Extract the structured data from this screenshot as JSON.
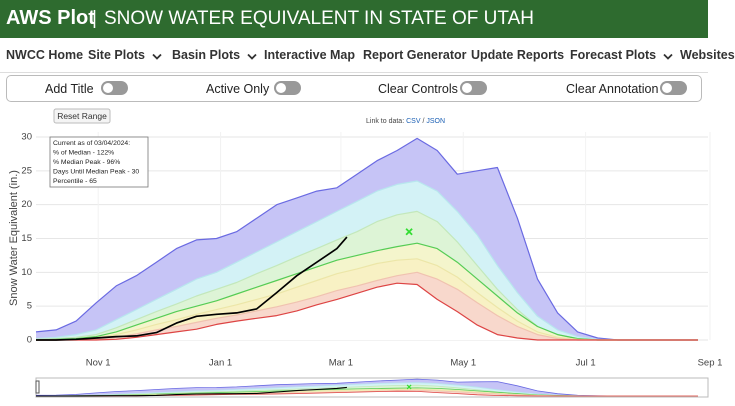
{
  "header": {
    "title": "AWS Plot",
    "separator": "|",
    "subtitle": "SNOW WATER EQUIVALENT IN STATE OF UTAH"
  },
  "nav": [
    {
      "label": "NWCC Home",
      "dropdown": false
    },
    {
      "label": "Site Plots",
      "dropdown": true
    },
    {
      "label": "Basin Plots",
      "dropdown": true
    },
    {
      "label": "Interactive Map",
      "dropdown": false
    },
    {
      "label": "Report Generator",
      "dropdown": false
    },
    {
      "label": "Update Reports",
      "dropdown": false
    },
    {
      "label": "Forecast Plots",
      "dropdown": true
    },
    {
      "label": "Websites",
      "dropdown": false
    }
  ],
  "toggles": [
    "Add Title",
    "Active Only",
    "Clear Controls",
    "Clear Annotation"
  ],
  "controls": {
    "reset": "Reset Range",
    "link_prefix": "Link to data:",
    "links": [
      "CSV",
      "JSON"
    ],
    "link_separator": "/"
  },
  "chart_data": {
    "type": "area",
    "ylabel": "Snow Water Equivalent (in.)",
    "xlim": [
      0,
      335
    ],
    "ylim": [
      0,
      30
    ],
    "xticks": [
      {
        "value": 31,
        "label": "Nov 1"
      },
      {
        "value": 92,
        "label": "Jan 1"
      },
      {
        "value": 152,
        "label": "Mar 1"
      },
      {
        "value": 213,
        "label": "May 1"
      },
      {
        "value": 274,
        "label": "Jul 1"
      },
      {
        "value": 336,
        "label": "Sep 1"
      }
    ],
    "yticks": [
      0,
      5,
      10,
      15,
      20,
      25,
      30
    ],
    "grid": true,
    "x": [
      0,
      10,
      20,
      30,
      40,
      50,
      60,
      70,
      80,
      90,
      100,
      110,
      120,
      130,
      140,
      150,
      160,
      170,
      180,
      190,
      200,
      210,
      220,
      230,
      240,
      250,
      260,
      270,
      280,
      290,
      300,
      310,
      320,
      330
    ],
    "series": [
      {
        "fill": "#c6c4f6",
        "color": "#6a6ae2",
        "values": [
          1.2,
          1.5,
          2.8,
          5.5,
          8,
          9.5,
          11.5,
          13.5,
          14.8,
          15,
          16,
          18,
          20,
          21,
          22,
          22.5,
          24.5,
          26.5,
          28,
          29.8,
          28,
          24.5,
          25,
          25.5,
          18,
          9,
          4,
          1.2,
          0.3,
          0,
          0,
          0,
          0,
          0
        ]
      },
      {
        "fill": "#d3f2f6",
        "color": "#b8e6ee",
        "values": [
          0.2,
          0.4,
          0.8,
          1.5,
          3,
          4.5,
          6,
          7.5,
          9,
          10,
          11.5,
          13,
          14.5,
          16,
          17.5,
          19,
          20.5,
          22,
          23,
          23.5,
          22,
          19,
          15.5,
          11,
          7,
          3.5,
          1.5,
          0.5,
          0.1,
          0,
          0,
          0,
          0,
          0
        ]
      },
      {
        "fill": "#ddf4d6",
        "color": "#c3e8bb",
        "values": [
          0.1,
          0.2,
          0.4,
          0.8,
          1.8,
          3,
          4.2,
          5.3,
          6.5,
          7.5,
          8.5,
          9.8,
          11,
          12.3,
          13.5,
          14.8,
          16,
          17.5,
          18.5,
          19,
          17.5,
          14.5,
          11,
          7.5,
          4.5,
          2,
          0.8,
          0.2,
          0,
          0,
          0,
          0,
          0,
          0
        ]
      },
      {
        "fill": "#f4f5cc",
        "color": "#55cc55",
        "values": [
          0,
          0.1,
          0.2,
          0.5,
          1.2,
          2.2,
          3.2,
          4.2,
          5,
          5.8,
          6.8,
          7.8,
          8.8,
          9.8,
          10.8,
          11.8,
          12.5,
          13.2,
          13.8,
          14.3,
          13.5,
          11.5,
          9,
          6.5,
          4,
          2,
          0.8,
          0.2,
          0,
          0,
          0,
          0,
          0,
          0
        ]
      },
      {
        "fill": "#f8f1c4",
        "color": "#ece6a8",
        "values": [
          0,
          0,
          0.1,
          0.3,
          0.8,
          1.5,
          2.3,
          3,
          3.8,
          4.5,
          5.2,
          6,
          6.8,
          7.8,
          8.8,
          9.8,
          10.5,
          11.3,
          11.8,
          12,
          11,
          9.3,
          7,
          4.8,
          2.8,
          1.2,
          0.4,
          0.1,
          0,
          0,
          0,
          0,
          0,
          0
        ]
      },
      {
        "fill": "#f8d8cc",
        "color": "#f0c2b0",
        "values": [
          0,
          0,
          0,
          0.1,
          0.4,
          0.9,
          1.5,
          2,
          2.6,
          3.2,
          3.7,
          4.3,
          4.9,
          5.6,
          6.4,
          7.3,
          8,
          8.8,
          9.5,
          10,
          9,
          7.5,
          5.5,
          3.6,
          2,
          0.8,
          0.2,
          0,
          0,
          0,
          0,
          0,
          0,
          0
        ]
      },
      {
        "fill": "#ffffff",
        "color": "#dd4444",
        "values": [
          0,
          0,
          0,
          0,
          0.1,
          0.4,
          0.8,
          1.2,
          1.6,
          2.3,
          2.8,
          3.2,
          3.6,
          4.3,
          5.2,
          6,
          6.9,
          7.8,
          8.4,
          8.2,
          6,
          4.2,
          2.2,
          0.8,
          0.3,
          0,
          0,
          0,
          0,
          0,
          0,
          0,
          0,
          0
        ]
      },
      {
        "color": "#000000",
        "x": [
          0,
          10,
          20,
          30,
          40,
          50,
          60,
          70,
          80,
          90,
          100,
          110,
          120,
          130,
          140,
          150,
          155
        ],
        "values": [
          0,
          0,
          0.1,
          0.3,
          0.5,
          0.6,
          1.1,
          2.5,
          3.5,
          3.8,
          4,
          4.6,
          7,
          9.5,
          11.5,
          13.5,
          15.2
        ]
      }
    ],
    "marker": {
      "x": 186,
      "y": 16,
      "color": "#33dd33"
    },
    "annotation": [
      "Current as of 03/04/2024:",
      "% of Median - 122%",
      "% Median Peak - 96%",
      "Days Until Median Peak - 30",
      "Percentile - 65"
    ]
  }
}
